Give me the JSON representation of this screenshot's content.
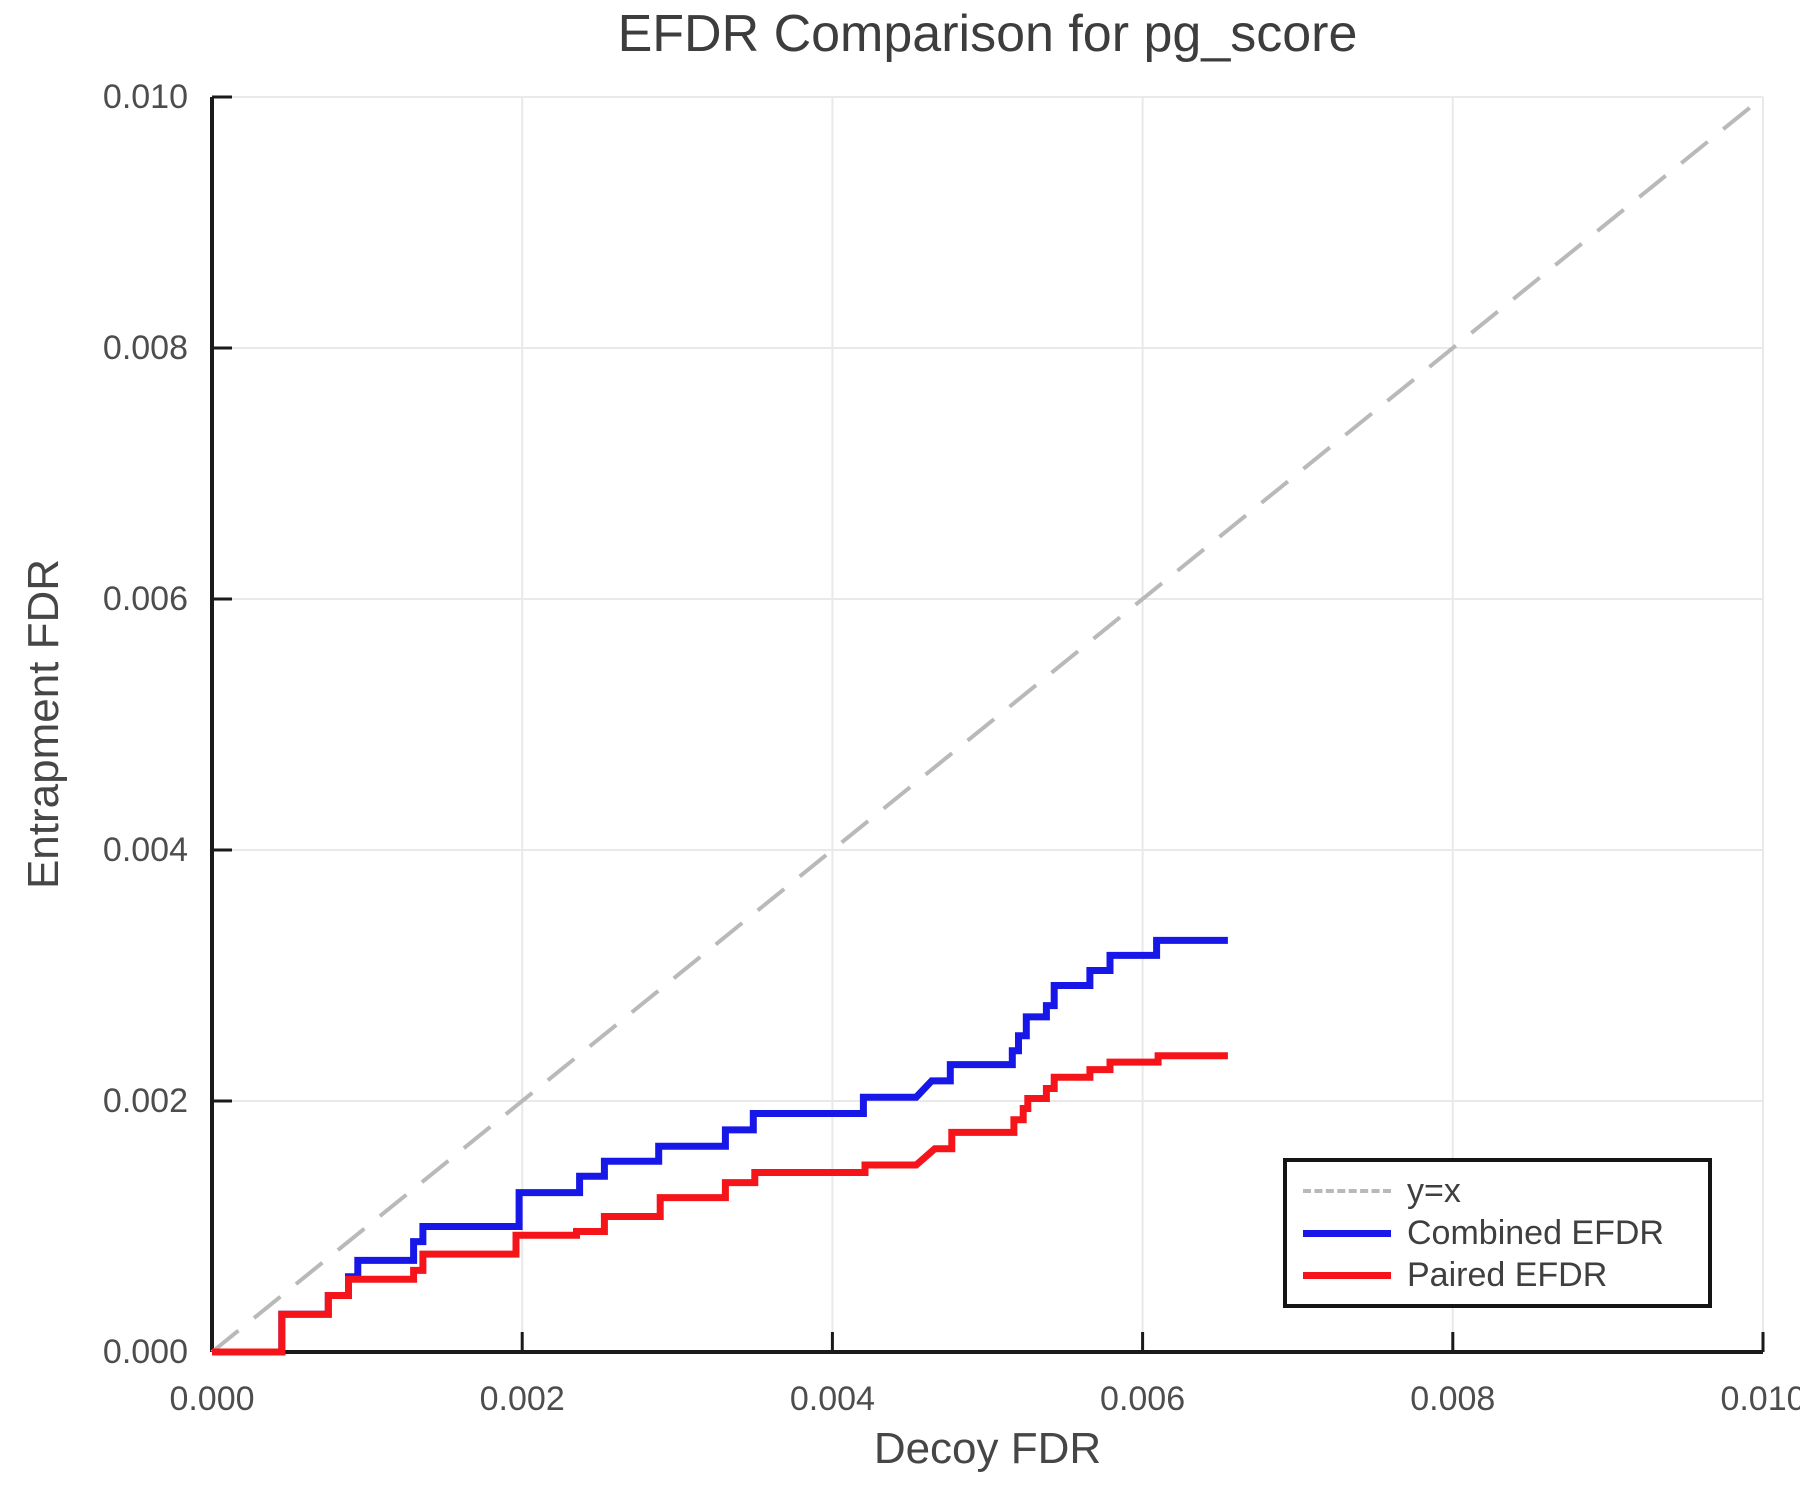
{
  "chart_data": {
    "type": "line",
    "title": "EFDR Comparison for pg_score",
    "xlabel": "Decoy FDR",
    "ylabel": "Entrapment FDR",
    "xlim": [
      0,
      0.01
    ],
    "ylim": [
      0,
      0.01
    ],
    "grid": true,
    "x_ticks": [
      "0.000",
      "0.002",
      "0.004",
      "0.006",
      "0.008",
      "0.010"
    ],
    "y_ticks": [
      "0.000",
      "0.002",
      "0.004",
      "0.006",
      "0.008",
      "0.010"
    ],
    "x_tick_values": [
      0,
      0.002,
      0.004,
      0.006,
      0.008,
      0.01
    ],
    "y_tick_values": [
      0,
      0.002,
      0.004,
      0.006,
      0.008,
      0.01
    ],
    "grid_values": [
      0.002,
      0.004,
      0.006,
      0.008,
      0.01
    ],
    "style": {
      "grid_color": "#e9e9e9",
      "spine_color": "#1a1a1a",
      "tick_color": "#1a1a1a",
      "background": "#ffffff"
    },
    "legend": {
      "position": "lower right",
      "entries": [
        {
          "label": "y=x",
          "style": "dashed",
          "color": "#b9b9b9"
        },
        {
          "label": "Combined EFDR",
          "style": "solid",
          "color": "#1717e8"
        },
        {
          "label": "Paired EFDR",
          "style": "solid",
          "color": "#f51419"
        }
      ]
    },
    "series": [
      {
        "name": "y=x",
        "data_name": "identity-line",
        "color": "#b9b9b9",
        "width": 4,
        "dash": "34 20",
        "points": [
          [
            0,
            0
          ],
          [
            0.01,
            0.01
          ]
        ]
      },
      {
        "name": "Combined EFDR",
        "data_name": "combined-efdr-line",
        "color": "#1717e8",
        "width": 7,
        "dash": null,
        "points": [
          [
            0,
            0
          ],
          [
            0.00045,
            0
          ],
          [
            0.00045,
            0.0003
          ],
          [
            0.00075,
            0.0003
          ],
          [
            0.00075,
            0.00045
          ],
          [
            0.00088,
            0.00045
          ],
          [
            0.00088,
            0.0006
          ],
          [
            0.00094,
            0.0006
          ],
          [
            0.00094,
            0.00073
          ],
          [
            0.0013,
            0.00073
          ],
          [
            0.0013,
            0.00088
          ],
          [
            0.00136,
            0.00088
          ],
          [
            0.00136,
            0.001
          ],
          [
            0.00198,
            0.001
          ],
          [
            0.00198,
            0.00127
          ],
          [
            0.00237,
            0.00127
          ],
          [
            0.00237,
            0.0014
          ],
          [
            0.00253,
            0.0014
          ],
          [
            0.00253,
            0.00152
          ],
          [
            0.00288,
            0.00152
          ],
          [
            0.00288,
            0.00164
          ],
          [
            0.00331,
            0.00164
          ],
          [
            0.00331,
            0.00177
          ],
          [
            0.00349,
            0.00177
          ],
          [
            0.00349,
            0.0019
          ],
          [
            0.0042,
            0.0019
          ],
          [
            0.0042,
            0.00203
          ],
          [
            0.00454,
            0.00203
          ],
          [
            0.00464,
            0.00216
          ],
          [
            0.00476,
            0.00216
          ],
          [
            0.00476,
            0.00229
          ],
          [
            0.00516,
            0.00229
          ],
          [
            0.00516,
            0.0024
          ],
          [
            0.0052,
            0.0024
          ],
          [
            0.0052,
            0.00252
          ],
          [
            0.00525,
            0.00252
          ],
          [
            0.00525,
            0.00267
          ],
          [
            0.00538,
            0.00267
          ],
          [
            0.00538,
            0.00276
          ],
          [
            0.00543,
            0.00276
          ],
          [
            0.00543,
            0.00292
          ],
          [
            0.00566,
            0.00292
          ],
          [
            0.00566,
            0.00304
          ],
          [
            0.00579,
            0.00304
          ],
          [
            0.00579,
            0.00316
          ],
          [
            0.00609,
            0.00316
          ],
          [
            0.00609,
            0.00328
          ],
          [
            0.00655,
            0.00328
          ]
        ]
      },
      {
        "name": "Paired EFDR",
        "data_name": "paired-efdr-line",
        "color": "#f51419",
        "width": 7,
        "dash": null,
        "points": [
          [
            0,
            0
          ],
          [
            0.00045,
            0
          ],
          [
            0.00045,
            0.0003
          ],
          [
            0.00075,
            0.0003
          ],
          [
            0.00075,
            0.00045
          ],
          [
            0.00088,
            0.00045
          ],
          [
            0.00088,
            0.00058
          ],
          [
            0.0013,
            0.00058
          ],
          [
            0.0013,
            0.00065
          ],
          [
            0.00136,
            0.00065
          ],
          [
            0.00136,
            0.00078
          ],
          [
            0.00196,
            0.00078
          ],
          [
            0.00196,
            0.00093
          ],
          [
            0.00235,
            0.00093
          ],
          [
            0.00235,
            0.00096
          ],
          [
            0.00253,
            0.00096
          ],
          [
            0.00253,
            0.00108
          ],
          [
            0.00289,
            0.00108
          ],
          [
            0.00289,
            0.00123
          ],
          [
            0.00331,
            0.00123
          ],
          [
            0.00331,
            0.00135
          ],
          [
            0.0035,
            0.00135
          ],
          [
            0.0035,
            0.00143
          ],
          [
            0.00421,
            0.00143
          ],
          [
            0.00421,
            0.00149
          ],
          [
            0.00454,
            0.00149
          ],
          [
            0.00466,
            0.00162
          ],
          [
            0.00477,
            0.00162
          ],
          [
            0.00477,
            0.00175
          ],
          [
            0.00517,
            0.00175
          ],
          [
            0.00517,
            0.00185
          ],
          [
            0.00523,
            0.00185
          ],
          [
            0.00523,
            0.00194
          ],
          [
            0.00526,
            0.00194
          ],
          [
            0.00526,
            0.00202
          ],
          [
            0.00538,
            0.00202
          ],
          [
            0.00538,
            0.0021
          ],
          [
            0.00543,
            0.0021
          ],
          [
            0.00543,
            0.00219
          ],
          [
            0.00566,
            0.00219
          ],
          [
            0.00566,
            0.00225
          ],
          [
            0.00579,
            0.00225
          ],
          [
            0.00579,
            0.00231
          ],
          [
            0.0061,
            0.00231
          ],
          [
            0.0061,
            0.00236
          ],
          [
            0.00655,
            0.00236
          ]
        ]
      }
    ]
  }
}
